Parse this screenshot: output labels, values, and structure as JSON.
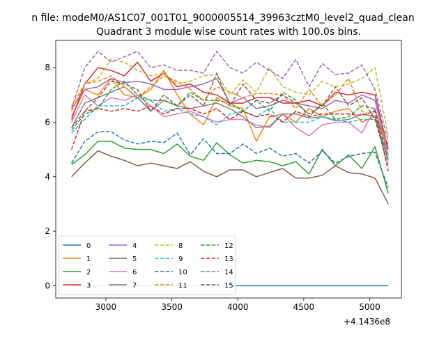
{
  "figure": {
    "suptitle": "n file: modeM0/AS1C07_001T01_9000005514_39963cztM0_level2_quad_clean",
    "title": "Quadrant 3 module wise count rates with 100.0s bins.",
    "x_offset_label": "+4.1436e8"
  },
  "chart_data": {
    "type": "line",
    "title": "Quadrant 3 module wise count rates with 100.0s bins.",
    "xlabel": "",
    "ylabel": "",
    "x_offset": 414360000,
    "xlim": [
      2620,
      5240
    ],
    "ylim": [
      -0.45,
      9.0
    ],
    "xticks": [
      3000,
      3500,
      4000,
      4500,
      5000
    ],
    "yticks": [
      0,
      2,
      4,
      6,
      8
    ],
    "x": [
      2740,
      2840,
      2940,
      3040,
      3140,
      3240,
      3340,
      3440,
      3540,
      3640,
      3740,
      3840,
      3940,
      4040,
      4140,
      4240,
      4340,
      4440,
      4540,
      4640,
      4740,
      4840,
      4940,
      5040,
      5140
    ],
    "legend_position": "lower-left",
    "grid": false,
    "series": [
      {
        "name": "0",
        "color": "#1f77b4",
        "dash": "solid",
        "values": [
          0,
          0,
          0,
          0,
          0,
          0,
          0,
          0,
          0,
          0,
          0,
          0,
          0,
          0,
          0,
          0,
          0,
          0,
          0,
          0,
          0,
          0,
          0,
          0,
          0
        ]
      },
      {
        "name": "1",
        "color": "#ff7f0e",
        "dash": "solid",
        "values": [
          6.2,
          7.2,
          7.0,
          7.6,
          7.0,
          6.9,
          7.2,
          7.9,
          7.0,
          6.3,
          5.9,
          6.9,
          6.6,
          6.5,
          5.3,
          6.2,
          6.3,
          6.0,
          6.5,
          6.2,
          6.4,
          6.5,
          6.0,
          6.2,
          5.0
        ]
      },
      {
        "name": "2",
        "color": "#2ca02c",
        "dash": "solid",
        "values": [
          4.45,
          4.8,
          5.3,
          5.3,
          5.05,
          5.0,
          5.0,
          4.85,
          5.2,
          4.75,
          4.6,
          5.25,
          4.8,
          4.5,
          4.6,
          4.55,
          4.4,
          4.55,
          4.1,
          5.0,
          4.4,
          4.8,
          4.3,
          5.1,
          3.4
        ]
      },
      {
        "name": "3",
        "color": "#d62728",
        "dash": "solid",
        "values": [
          6.1,
          7.4,
          8.0,
          7.9,
          7.7,
          8.2,
          7.5,
          7.8,
          7.3,
          7.4,
          7.1,
          7.0,
          6.7,
          6.7,
          6.9,
          6.9,
          6.7,
          6.7,
          6.8,
          6.6,
          7.1,
          7.0,
          7.1,
          7.0,
          5.0
        ]
      },
      {
        "name": "4",
        "color": "#9467bd",
        "dash": "solid",
        "values": [
          6.5,
          7.2,
          7.3,
          7.6,
          7.45,
          7.5,
          7.4,
          7.2,
          7.2,
          7.3,
          7.4,
          7.6,
          6.7,
          6.9,
          6.5,
          6.6,
          6.8,
          6.7,
          6.6,
          6.5,
          6.8,
          6.7,
          7.0,
          6.8,
          4.8
        ]
      },
      {
        "name": "5",
        "color": "#8c564b",
        "dash": "solid",
        "values": [
          4.0,
          4.5,
          4.95,
          4.75,
          4.6,
          4.4,
          4.5,
          4.4,
          4.3,
          4.55,
          4.2,
          4.0,
          4.25,
          4.25,
          4.0,
          4.15,
          4.3,
          3.95,
          3.95,
          4.05,
          4.4,
          4.15,
          4.1,
          3.95,
          3.0
        ]
      },
      {
        "name": "6",
        "color": "#e377c2",
        "dash": "solid",
        "values": [
          6.0,
          7.0,
          6.6,
          6.9,
          6.8,
          7.0,
          6.6,
          6.2,
          6.3,
          6.4,
          6.2,
          6.0,
          6.1,
          6.1,
          5.9,
          5.8,
          6.3,
          5.8,
          5.5,
          5.9,
          6.0,
          6.0,
          5.6,
          6.5,
          4.8
        ]
      },
      {
        "name": "7",
        "color": "#7f7f7f",
        "dash": "solid",
        "values": [
          5.8,
          6.7,
          6.9,
          7.1,
          7.3,
          6.9,
          6.4,
          6.8,
          6.6,
          6.5,
          6.6,
          6.7,
          6.5,
          6.2,
          5.8,
          5.85,
          6.3,
          6.3,
          6.15,
          6.2,
          6.05,
          6.1,
          6.3,
          6.2,
          4.6
        ]
      },
      {
        "name": "8",
        "color": "#bcbd22",
        "dash": "dash",
        "values": [
          6.6,
          7.4,
          7.6,
          8.3,
          8.2,
          7.9,
          7.7,
          7.8,
          7.4,
          7.5,
          7.7,
          7.75,
          7.0,
          7.55,
          7.1,
          8.0,
          7.3,
          7.1,
          7.0,
          7.5,
          7.3,
          7.4,
          7.6,
          8.0,
          5.5
        ]
      },
      {
        "name": "9",
        "color": "#17becf",
        "dash": "dash",
        "values": [
          5.6,
          6.1,
          6.6,
          6.6,
          6.6,
          6.9,
          6.8,
          6.4,
          6.5,
          6.3,
          6.2,
          5.9,
          6.3,
          6.4,
          6.2,
          6.5,
          6.0,
          6.0,
          6.0,
          6.2,
          6.1,
          6.0,
          6.1,
          6.1,
          4.7
        ]
      },
      {
        "name": "10",
        "color": "#1f77b4",
        "dash": "dash",
        "values": [
          4.5,
          5.3,
          5.65,
          5.65,
          5.35,
          5.2,
          5.3,
          5.25,
          5.6,
          4.8,
          5.4,
          4.85,
          4.85,
          5.2,
          4.85,
          5.05,
          4.75,
          4.85,
          4.5,
          4.95,
          4.5,
          4.75,
          4.85,
          4.9,
          3.6
        ]
      },
      {
        "name": "11",
        "color": "#ff7f0e",
        "dash": "dash",
        "values": [
          6.4,
          7.4,
          7.5,
          7.7,
          7.3,
          6.9,
          7.3,
          7.7,
          7.5,
          7.2,
          6.8,
          7.3,
          7.1,
          6.9,
          7.05,
          7.05,
          7.0,
          6.5,
          7.2,
          6.6,
          7.0,
          7.6,
          6.4,
          6.2,
          5.2
        ]
      },
      {
        "name": "12",
        "color": "#2ca02c",
        "dash": "dash",
        "values": [
          5.7,
          6.3,
          6.5,
          7.2,
          7.5,
          7.0,
          6.8,
          6.8,
          6.6,
          7.1,
          6.8,
          6.8,
          6.7,
          6.4,
          6.8,
          6.4,
          7.1,
          6.8,
          6.2,
          6.7,
          6.1,
          6.2,
          6.6,
          6.5,
          4.6
        ]
      },
      {
        "name": "13",
        "color": "#d62728",
        "dash": "dash",
        "values": [
          5.0,
          6.4,
          6.5,
          6.4,
          6.5,
          6.4,
          6.6,
          6.3,
          6.5,
          6.5,
          6.3,
          6.5,
          6.1,
          6.4,
          6.2,
          6.3,
          6.0,
          6.4,
          6.2,
          6.3,
          6.3,
          6.3,
          6.25,
          6.4,
          4.2
        ]
      },
      {
        "name": "14",
        "color": "#9467bd",
        "dash": "dash",
        "values": [
          6.5,
          8.0,
          8.6,
          8.2,
          8.4,
          8.6,
          8.0,
          8.1,
          7.9,
          7.9,
          7.8,
          8.6,
          8.0,
          7.8,
          8.2,
          7.9,
          7.6,
          8.3,
          7.3,
          8.15,
          7.75,
          7.8,
          8.1,
          7.2,
          5.3
        ]
      },
      {
        "name": "15",
        "color": "#8c564b",
        "dash": "dash",
        "values": [
          5.8,
          6.4,
          6.9,
          7.5,
          7.4,
          7.2,
          6.4,
          7.0,
          6.6,
          7.0,
          6.6,
          7.8,
          6.6,
          7.4,
          6.8,
          6.7,
          7.0,
          6.7,
          6.3,
          6.6,
          7.3,
          6.6,
          6.9,
          6.1,
          4.4
        ]
      }
    ]
  }
}
